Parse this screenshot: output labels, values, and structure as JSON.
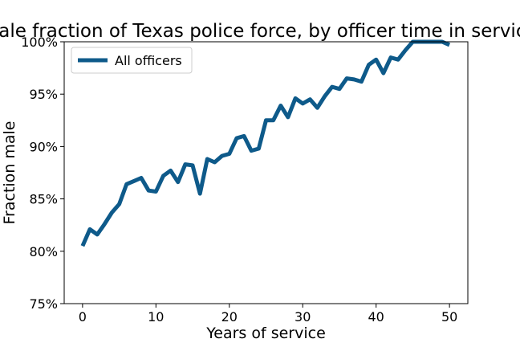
{
  "chart_data": {
    "type": "line",
    "title": "Male fraction of Texas police force, by officer time in service",
    "xlabel": "Years of service",
    "ylabel": "Fraction male",
    "xlim": [
      -2.5,
      52.5
    ],
    "ylim": [
      0.75,
      1.0
    ],
    "xticks": [
      0,
      10,
      20,
      30,
      40,
      50
    ],
    "xtick_labels": [
      "0",
      "10",
      "20",
      "30",
      "40",
      "50"
    ],
    "yticks": [
      0.75,
      0.8,
      0.85,
      0.9,
      0.95,
      1.0
    ],
    "ytick_labels": [
      "75%",
      "80%",
      "85%",
      "90%",
      "95%",
      "100%"
    ],
    "grid": false,
    "legend": {
      "position": "top-left",
      "entries": [
        "All officers"
      ]
    },
    "series": [
      {
        "name": "All officers",
        "color": "#0e5a8a",
        "x": [
          0,
          1,
          2,
          3,
          4,
          5,
          6,
          7,
          8,
          9,
          10,
          11,
          12,
          13,
          14,
          15,
          16,
          17,
          18,
          19,
          20,
          21,
          22,
          23,
          24,
          25,
          26,
          27,
          28,
          29,
          30,
          31,
          32,
          33,
          34,
          35,
          36,
          37,
          38,
          39,
          40,
          41,
          42,
          43,
          44,
          45,
          46,
          47,
          48,
          49,
          50
        ],
        "y": [
          0.805,
          0.821,
          0.816,
          0.826,
          0.837,
          0.845,
          0.864,
          0.867,
          0.87,
          0.858,
          0.857,
          0.872,
          0.877,
          0.866,
          0.883,
          0.882,
          0.855,
          0.888,
          0.885,
          0.891,
          0.893,
          0.908,
          0.91,
          0.896,
          0.898,
          0.925,
          0.925,
          0.939,
          0.928,
          0.946,
          0.941,
          0.945,
          0.937,
          0.948,
          0.957,
          0.955,
          0.965,
          0.964,
          0.962,
          0.978,
          0.983,
          0.97,
          0.985,
          0.983,
          0.992,
          1.0,
          1.0,
          1.0,
          1.0,
          1.0,
          0.997
        ]
      }
    ]
  }
}
